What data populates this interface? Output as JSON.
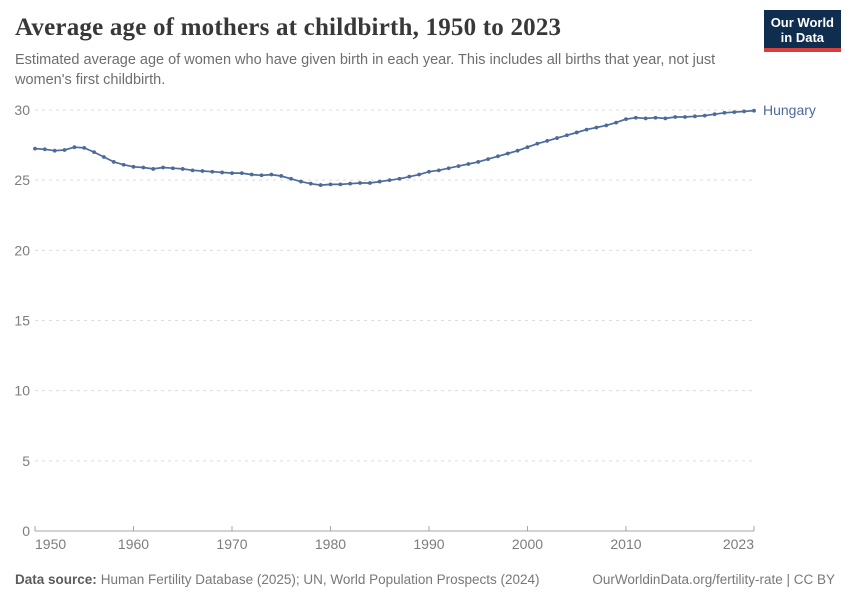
{
  "header": {
    "title": "Average age of mothers at childbirth, 1950 to 2023",
    "subtitle": "Estimated average age of women who have given birth in each year. This includes all births that year, not just women's first childbirth.",
    "logo_line1": "Our World",
    "logo_line2": "in Data"
  },
  "footer": {
    "source_label": "Data source:",
    "source_text": "Human Fertility Database (2025); UN, World Population Prospects (2024)",
    "credit": "OurWorldinData.org/fertility-rate | CC BY"
  },
  "colors": {
    "series": "#4c6a9c",
    "grid": "#dcdcdc",
    "axis": "#a5a5a5",
    "tick_label": "#7d7d7d",
    "logo_bg": "#0f2d4e",
    "logo_bar": "#d93d3d"
  },
  "chart_data": {
    "type": "line",
    "title": "Average age of mothers at childbirth, 1950 to 2023",
    "entity_label": "Hungary",
    "xlim": [
      1950,
      2023
    ],
    "ylim": [
      0,
      30
    ],
    "x_ticks": [
      1950,
      1960,
      1970,
      1980,
      1990,
      2000,
      2010,
      2023
    ],
    "y_ticks": [
      0,
      5,
      10,
      15,
      20,
      25,
      30
    ],
    "grid": "horizontal-dashed",
    "legend_position": "end-of-line",
    "x": [
      1950,
      1951,
      1952,
      1953,
      1954,
      1955,
      1956,
      1957,
      1958,
      1959,
      1960,
      1961,
      1962,
      1963,
      1964,
      1965,
      1966,
      1967,
      1968,
      1969,
      1970,
      1971,
      1972,
      1973,
      1974,
      1975,
      1976,
      1977,
      1978,
      1979,
      1980,
      1981,
      1982,
      1983,
      1984,
      1985,
      1986,
      1987,
      1988,
      1989,
      1990,
      1991,
      1992,
      1993,
      1994,
      1995,
      1996,
      1997,
      1998,
      1999,
      2000,
      2001,
      2002,
      2003,
      2004,
      2005,
      2006,
      2007,
      2008,
      2009,
      2010,
      2011,
      2012,
      2013,
      2014,
      2015,
      2016,
      2017,
      2018,
      2019,
      2020,
      2021,
      2022,
      2023
    ],
    "series": [
      {
        "name": "Hungary",
        "values": [
          27.25,
          27.2,
          27.1,
          27.15,
          27.35,
          27.3,
          27.0,
          26.65,
          26.3,
          26.1,
          25.95,
          25.9,
          25.8,
          25.9,
          25.85,
          25.8,
          25.7,
          25.65,
          25.6,
          25.55,
          25.5,
          25.5,
          25.4,
          25.35,
          25.4,
          25.3,
          25.1,
          24.9,
          24.75,
          24.65,
          24.7,
          24.7,
          24.75,
          24.8,
          24.8,
          24.9,
          25.0,
          25.1,
          25.25,
          25.4,
          25.6,
          25.7,
          25.85,
          26.0,
          26.15,
          26.3,
          26.5,
          26.7,
          26.9,
          27.1,
          27.35,
          27.6,
          27.8,
          28.0,
          28.2,
          28.4,
          28.6,
          28.75,
          28.9,
          29.1,
          29.35,
          29.45,
          29.4,
          29.45,
          29.4,
          29.5,
          29.5,
          29.55,
          29.6,
          29.7,
          29.8,
          29.85,
          29.9,
          29.95
        ]
      }
    ]
  }
}
